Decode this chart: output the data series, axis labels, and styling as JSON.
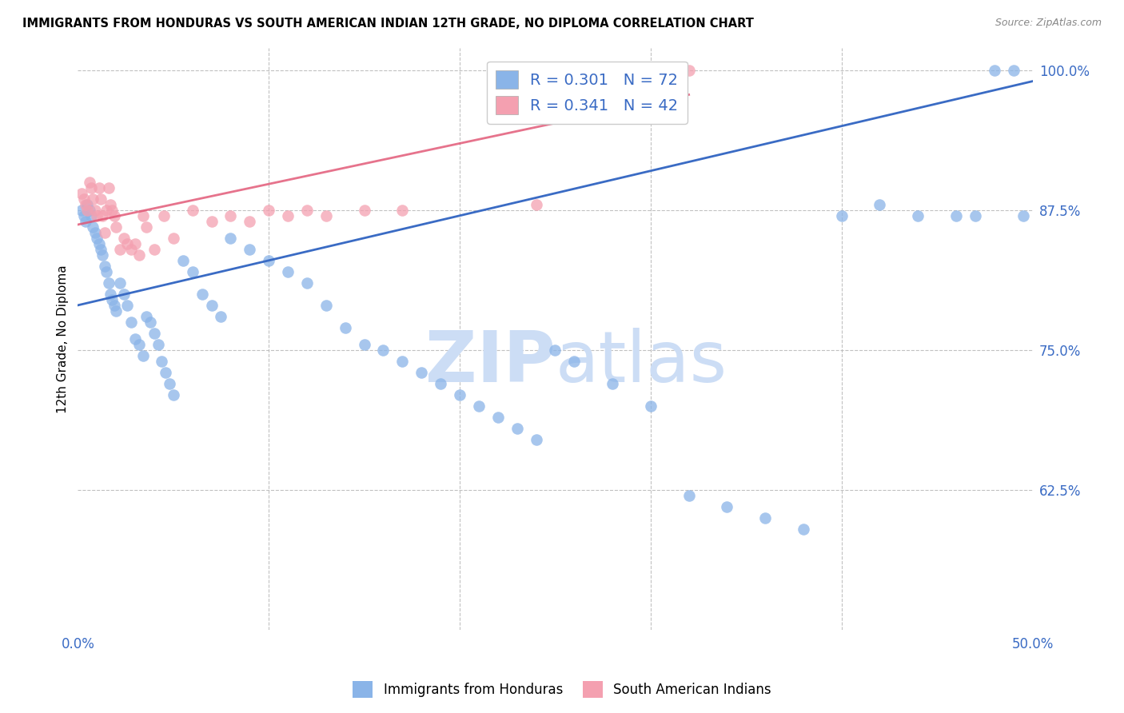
{
  "title": "IMMIGRANTS FROM HONDURAS VS SOUTH AMERICAN INDIAN 12TH GRADE, NO DIPLOMA CORRELATION CHART",
  "source": "Source: ZipAtlas.com",
  "ylabel": "12th Grade, No Diploma",
  "xmin": 0.0,
  "xmax": 0.5,
  "ymin": 0.5,
  "ymax": 1.02,
  "yticks": [
    0.625,
    0.75,
    0.875,
    1.0
  ],
  "ytick_labels": [
    "62.5%",
    "75.0%",
    "87.5%",
    "100.0%"
  ],
  "xticks": [
    0.0,
    0.1,
    0.2,
    0.3,
    0.4,
    0.5
  ],
  "xtick_labels": [
    "0.0%",
    "",
    "",
    "",
    "",
    "50.0%"
  ],
  "legend_r1": "R = 0.301",
  "legend_n1": "N = 72",
  "legend_r2": "R = 0.341",
  "legend_n2": "N = 42",
  "blue_color": "#8ab4e8",
  "pink_color": "#f4a0b0",
  "line_blue": "#3a6bc4",
  "line_pink": "#e05070",
  "text_blue": "#3a6bc4",
  "watermark_color": "#ccddf5",
  "blue_scatter_x": [
    0.002,
    0.003,
    0.004,
    0.005,
    0.006,
    0.007,
    0.008,
    0.009,
    0.01,
    0.011,
    0.012,
    0.013,
    0.014,
    0.015,
    0.016,
    0.017,
    0.018,
    0.019,
    0.02,
    0.022,
    0.024,
    0.026,
    0.028,
    0.03,
    0.032,
    0.034,
    0.036,
    0.038,
    0.04,
    0.042,
    0.044,
    0.046,
    0.048,
    0.05,
    0.055,
    0.06,
    0.065,
    0.07,
    0.075,
    0.08,
    0.09,
    0.1,
    0.11,
    0.12,
    0.13,
    0.14,
    0.15,
    0.16,
    0.17,
    0.18,
    0.19,
    0.2,
    0.21,
    0.22,
    0.23,
    0.24,
    0.25,
    0.26,
    0.28,
    0.3,
    0.32,
    0.34,
    0.36,
    0.38,
    0.4,
    0.42,
    0.44,
    0.46,
    0.47,
    0.48,
    0.49,
    0.495
  ],
  "blue_scatter_y": [
    0.875,
    0.87,
    0.865,
    0.88,
    0.875,
    0.87,
    0.86,
    0.855,
    0.85,
    0.845,
    0.84,
    0.835,
    0.825,
    0.82,
    0.81,
    0.8,
    0.795,
    0.79,
    0.785,
    0.81,
    0.8,
    0.79,
    0.775,
    0.76,
    0.755,
    0.745,
    0.78,
    0.775,
    0.765,
    0.755,
    0.74,
    0.73,
    0.72,
    0.71,
    0.83,
    0.82,
    0.8,
    0.79,
    0.78,
    0.85,
    0.84,
    0.83,
    0.82,
    0.81,
    0.79,
    0.77,
    0.755,
    0.75,
    0.74,
    0.73,
    0.72,
    0.71,
    0.7,
    0.69,
    0.68,
    0.67,
    0.75,
    0.74,
    0.72,
    0.7,
    0.62,
    0.61,
    0.6,
    0.59,
    0.87,
    0.88,
    0.87,
    0.87,
    0.87,
    1.0,
    1.0,
    0.87
  ],
  "pink_scatter_x": [
    0.002,
    0.003,
    0.004,
    0.005,
    0.006,
    0.007,
    0.008,
    0.009,
    0.01,
    0.011,
    0.012,
    0.013,
    0.014,
    0.015,
    0.016,
    0.017,
    0.018,
    0.019,
    0.02,
    0.022,
    0.024,
    0.026,
    0.028,
    0.03,
    0.032,
    0.034,
    0.036,
    0.04,
    0.045,
    0.05,
    0.06,
    0.07,
    0.08,
    0.09,
    0.1,
    0.11,
    0.12,
    0.13,
    0.15,
    0.17,
    0.24,
    0.32
  ],
  "pink_scatter_y": [
    0.89,
    0.885,
    0.88,
    0.875,
    0.9,
    0.895,
    0.885,
    0.875,
    0.87,
    0.895,
    0.885,
    0.87,
    0.855,
    0.875,
    0.895,
    0.88,
    0.875,
    0.87,
    0.86,
    0.84,
    0.85,
    0.845,
    0.84,
    0.845,
    0.835,
    0.87,
    0.86,
    0.84,
    0.87,
    0.85,
    0.875,
    0.865,
    0.87,
    0.865,
    0.875,
    0.87,
    0.875,
    0.87,
    0.875,
    0.875,
    0.88,
    1.0
  ],
  "blue_line_x0": 0.0,
  "blue_line_x1": 0.5,
  "blue_line_y0": 0.79,
  "blue_line_y1": 0.99,
  "pink_line_x0": 0.0,
  "pink_line_x1": 0.32,
  "pink_line_y0": 0.862,
  "pink_line_y1": 0.978
}
